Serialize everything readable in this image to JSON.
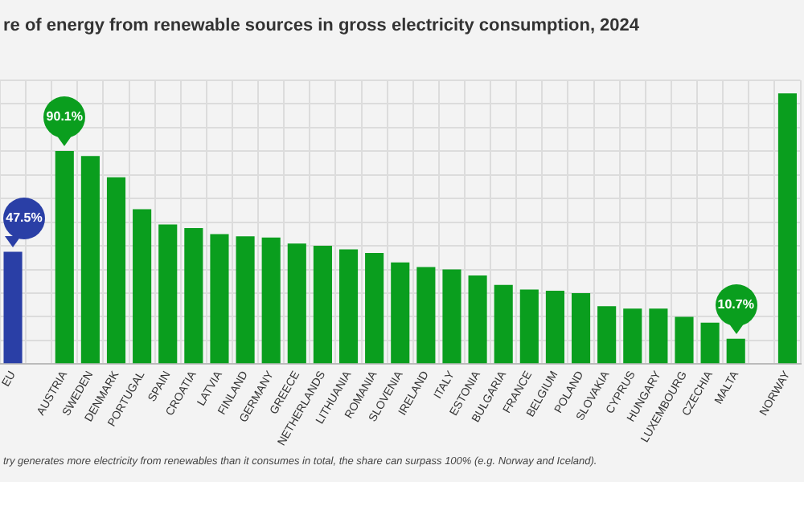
{
  "chart_data": {
    "type": "bar",
    "title": "re of energy from renewable sources in gross electricity consumption, 2024",
    "categories": [
      "EU",
      null,
      "AUSTRIA",
      "SWEDEN",
      "DENMARK",
      "PORTUGAL",
      "SPAIN",
      "CROATIA",
      "LATVIA",
      "FINLAND",
      "GERMANY",
      "GREECE",
      "NETHERLANDS",
      "LITHUANIA",
      "ROMANIA",
      "SLOVENIA",
      "IRELAND",
      "ITALY",
      "ESTONIA",
      "BULGARIA",
      "FRANCE",
      "BELGIUM",
      "POLAND",
      "SLOVAKIA",
      "CYPRUS",
      "HUNGARY",
      "LUXEMBOURG",
      "CZECHIA",
      "MALTA",
      null,
      "NORWAY"
    ],
    "values": [
      47.5,
      null,
      90.1,
      88,
      79,
      65.5,
      59,
      57.5,
      55,
      54,
      53.5,
      51,
      50,
      48.5,
      47,
      43,
      41,
      40,
      37.5,
      33.5,
      31.5,
      31,
      30,
      24.5,
      23.5,
      23.5,
      20,
      17.5,
      10.7,
      null,
      114.5
    ],
    "colors": [
      "#2a3fa6",
      null,
      "#0a9e1e",
      "#0a9e1e",
      "#0a9e1e",
      "#0a9e1e",
      "#0a9e1e",
      "#0a9e1e",
      "#0a9e1e",
      "#0a9e1e",
      "#0a9e1e",
      "#0a9e1e",
      "#0a9e1e",
      "#0a9e1e",
      "#0a9e1e",
      "#0a9e1e",
      "#0a9e1e",
      "#0a9e1e",
      "#0a9e1e",
      "#0a9e1e",
      "#0a9e1e",
      "#0a9e1e",
      "#0a9e1e",
      "#0a9e1e",
      "#0a9e1e",
      "#0a9e1e",
      "#0a9e1e",
      "#0a9e1e",
      "#0a9e1e",
      null,
      "#0a9e1e"
    ],
    "value_labels": [
      "47.5%",
      null,
      "90.1%",
      null,
      null,
      null,
      null,
      null,
      null,
      null,
      null,
      null,
      null,
      null,
      null,
      null,
      null,
      null,
      null,
      null,
      null,
      null,
      null,
      null,
      null,
      null,
      null,
      null,
      "10.7%",
      null,
      null
    ],
    "ylim": [
      0,
      120
    ],
    "yticks": [
      {
        "value": 0,
        "label": null
      },
      {
        "value": 10,
        "label": null
      },
      {
        "value": 20,
        "label": null
      },
      {
        "value": 30,
        "label": null
      },
      {
        "value": 40,
        "label": null
      },
      {
        "value": 50,
        "label": null
      },
      {
        "value": 60,
        "label": null
      },
      {
        "value": 70,
        "label": null
      },
      {
        "value": 80,
        "label": null
      },
      {
        "value": 90,
        "label": null
      },
      {
        "value": 100,
        "label": null
      },
      {
        "value": 110,
        "label": null
      },
      {
        "value": 120,
        "label": null
      }
    ],
    "tick_labels": "x",
    "grid": true,
    "legend": false,
    "annotations": [
      "try generates more electricity from renewables than it consumes in total, the share can surpass 100% (e.g. Norway and Iceland)."
    ]
  }
}
